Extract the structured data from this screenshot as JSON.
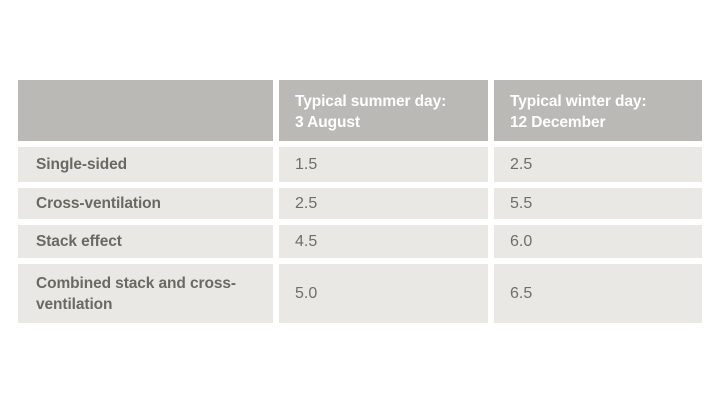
{
  "colors": {
    "page_bg": "#ffffff",
    "header_bg": "#bab9b5",
    "header_text": "#ffffff",
    "row_bg": "#e9e8e4",
    "label_text": "#6a6963",
    "value_text": "#6f6e68"
  },
  "table": {
    "header": {
      "summer_line1": "Typical summer day:",
      "summer_line2": "3 August",
      "winter_line1": "Typical winter day:",
      "winter_line2": "12 December"
    },
    "rows": [
      {
        "label": "Single-sided",
        "summer": "1.5",
        "winter": "2.5"
      },
      {
        "label": "Cross-ventilation",
        "summer": "2.5",
        "winter": "5.5"
      },
      {
        "label": "Stack effect",
        "summer": "4.5",
        "winter": "6.0"
      },
      {
        "label": "Combined stack and cross-ventilation",
        "summer": "5.0",
        "winter": "6.5"
      }
    ]
  },
  "chart_data": {
    "type": "table",
    "columns": [
      "",
      "Typical summer day: 3 August",
      "Typical winter day: 12 December"
    ],
    "rows": [
      [
        "Single-sided",
        "1.5",
        "2.5"
      ],
      [
        "Cross-ventilation",
        "2.5",
        "5.5"
      ],
      [
        "Stack effect",
        "4.5",
        "6.0"
      ],
      [
        "Combined stack and cross-ventilation",
        "5.0",
        "6.5"
      ]
    ]
  }
}
